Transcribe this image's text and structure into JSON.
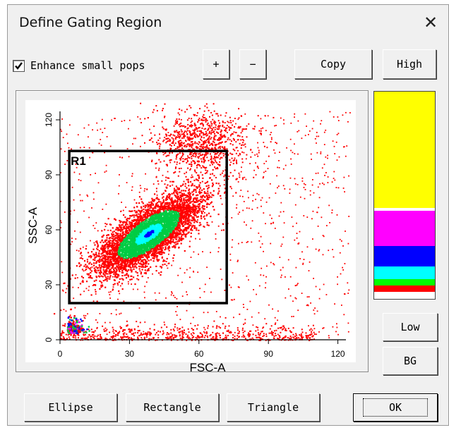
{
  "window": {
    "title": "Define Gating Region",
    "close_glyph": "✕"
  },
  "toolbar": {
    "enhance_label": "Enhance small pops",
    "enhance_checked": true,
    "plus_label": "+",
    "minus_label": "−",
    "copy_label": "Copy",
    "high_label": "High"
  },
  "plot": {
    "xlabel": "FSC-A",
    "ylabel": "SSC-A",
    "x_ticks": [
      "0",
      "30",
      "60",
      "90",
      "120"
    ],
    "y_ticks": [
      "0",
      "30",
      "60",
      "90",
      "120"
    ],
    "region_label": "R1",
    "region_bounds": {
      "x_min": 4,
      "x_max": 72,
      "y_min": 20,
      "y_max": 103
    },
    "density_colors": [
      "#ff0000",
      "#00cc44",
      "#00ffff",
      "#0000ff",
      "#ff00ff"
    ]
  },
  "colorbar": {
    "colors": [
      "#ffff00",
      "#ffffff",
      "#ff00ff",
      "#0000ff",
      "#00ffff",
      "#00ff00",
      "#ff0000",
      "#ffffff"
    ]
  },
  "side_buttons": {
    "low_label": "Low",
    "bg_label": "BG"
  },
  "bottom": {
    "ellipse_label": "Ellipse",
    "rectangle_label": "Rectangle",
    "triangle_label": "Triangle",
    "ok_label": "OK"
  }
}
